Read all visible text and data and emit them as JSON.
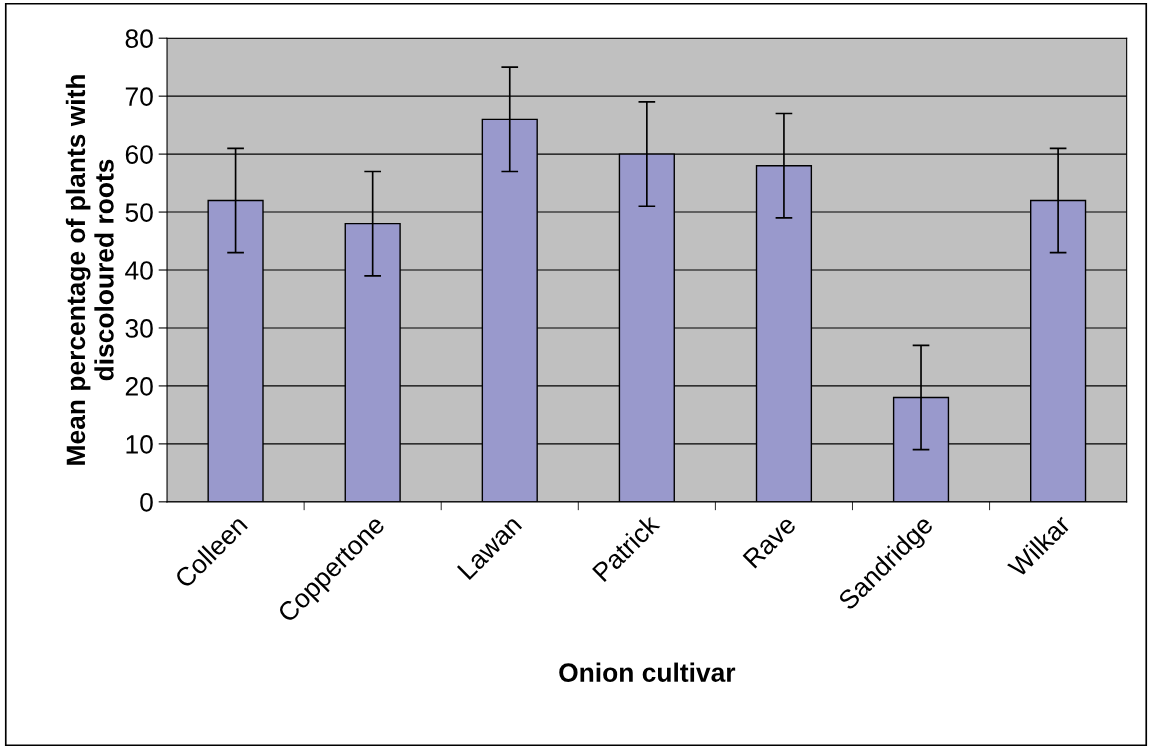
{
  "chart_data": {
    "type": "bar",
    "xlabel": "Onion cultivar",
    "ylabel": "Mean percentage of plants with discoloured roots",
    "categories": [
      "Colleen",
      "Coppertone",
      "Lawan",
      "Patrick",
      "Rave",
      "Sandridge",
      "Wilkar"
    ],
    "values": [
      52,
      48,
      66,
      60,
      58,
      18,
      52
    ],
    "errors": [
      9,
      9,
      9,
      9,
      9,
      9,
      9
    ],
    "color": "#9999cc",
    "ylim": [
      0,
      80
    ],
    "yticks": [
      0,
      10,
      20,
      30,
      40,
      50,
      60,
      70,
      80
    ],
    "grid": "y",
    "legend": false
  }
}
